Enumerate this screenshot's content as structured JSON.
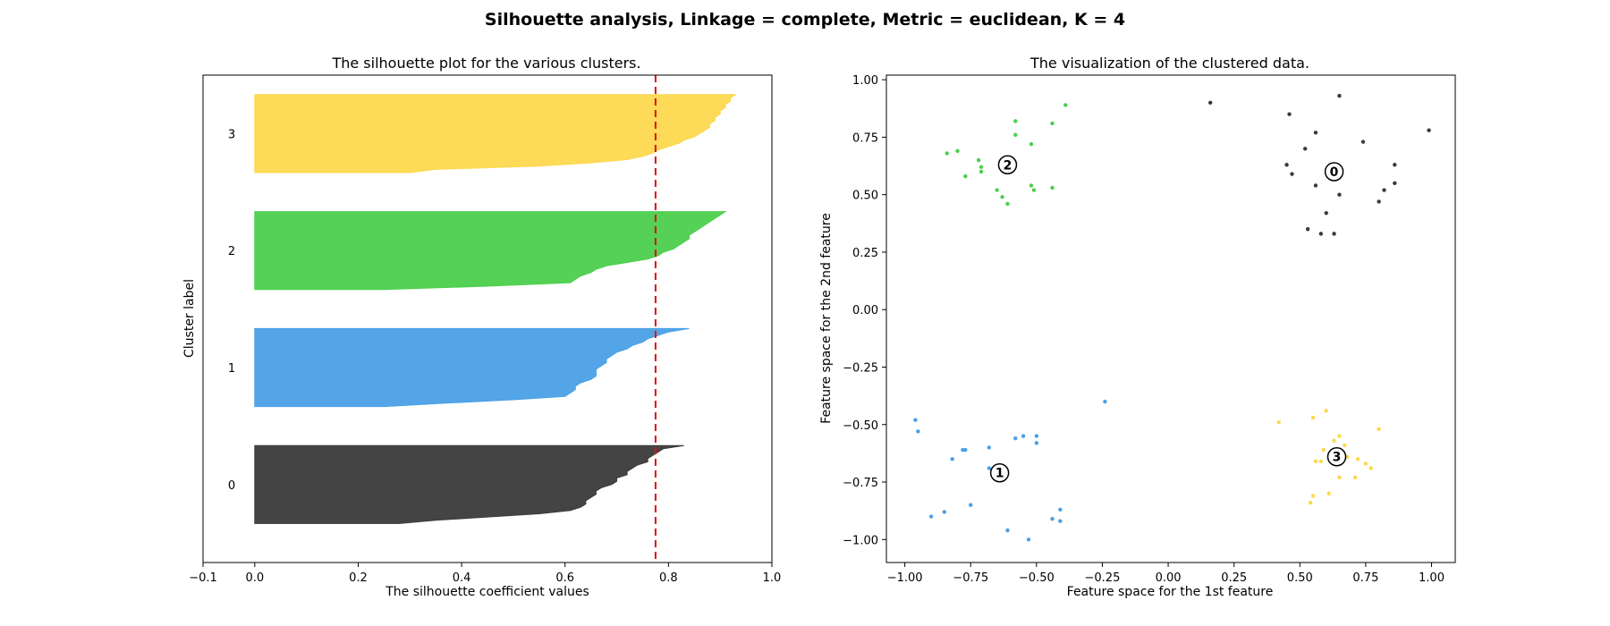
{
  "suptitle": "Silhouette analysis, Linkage = complete, Metric = euclidean, K = 4",
  "colors": {
    "cluster_0": "#3a3a3a",
    "cluster_1": "#4aa0e6",
    "cluster_2": "#4ccf4c",
    "cluster_3": "#fdd84e",
    "threshold_line": "#e01010"
  },
  "chart_data": [
    {
      "type": "area",
      "title": "The silhouette plot for the various clusters.",
      "xlabel": "The silhouette coefficient values",
      "ylabel": "Cluster label",
      "xlim": [
        -0.1,
        1.0
      ],
      "ylim": [
        0,
        5.0
      ],
      "xticks": [
        -0.1,
        0.0,
        0.2,
        0.4,
        0.6,
        0.8,
        1.0
      ],
      "xtick_labels": [
        "−0.1",
        "0.0",
        "0.2",
        "0.4",
        "0.6",
        "0.8",
        "1.0"
      ],
      "average_silhouette": 0.775,
      "clusters": [
        {
          "label": "0",
          "ybase": 0.4,
          "color": "#3a3a3a",
          "values": [
            0.83,
            0.79,
            0.78,
            0.77,
            0.76,
            0.76,
            0.74,
            0.73,
            0.72,
            0.72,
            0.7,
            0.7,
            0.69,
            0.67,
            0.66,
            0.66,
            0.65,
            0.64,
            0.64,
            0.63,
            0.61,
            0.55,
            0.45,
            0.35,
            0.28
          ]
        },
        {
          "label": "1",
          "ybase": 1.6,
          "color": "#4aa0e6",
          "values": [
            0.84,
            0.8,
            0.78,
            0.76,
            0.75,
            0.73,
            0.72,
            0.7,
            0.69,
            0.68,
            0.68,
            0.67,
            0.66,
            0.66,
            0.66,
            0.65,
            0.63,
            0.62,
            0.62,
            0.61,
            0.6,
            0.5,
            0.37,
            0.25
          ]
        },
        {
          "label": "2",
          "ybase": 2.8,
          "color": "#4ccf4c",
          "values": [
            0.91,
            0.9,
            0.89,
            0.88,
            0.87,
            0.86,
            0.85,
            0.84,
            0.84,
            0.83,
            0.82,
            0.81,
            0.79,
            0.78,
            0.76,
            0.72,
            0.68,
            0.66,
            0.65,
            0.63,
            0.62,
            0.61,
            0.45,
            0.25
          ]
        },
        {
          "label": "3",
          "ybase": 4.0,
          "color": "#fdd84e",
          "values": [
            0.93,
            0.92,
            0.92,
            0.91,
            0.91,
            0.9,
            0.9,
            0.89,
            0.89,
            0.88,
            0.88,
            0.87,
            0.86,
            0.85,
            0.83,
            0.82,
            0.8,
            0.78,
            0.77,
            0.75,
            0.72,
            0.65,
            0.55,
            0.35,
            0.3
          ]
        }
      ]
    },
    {
      "type": "scatter",
      "title": "The visualization of the clustered data.",
      "xlabel": "Feature space for the 1st feature",
      "ylabel": "Feature space for the 2nd feature",
      "xlim": [
        -1.07,
        1.09
      ],
      "ylim": [
        -1.1,
        1.02
      ],
      "xticks": [
        -1.0,
        -0.75,
        -0.5,
        -0.25,
        0.0,
        0.25,
        0.5,
        0.75,
        1.0
      ],
      "xtick_labels": [
        "−1.00",
        "−0.75",
        "−0.50",
        "−0.25",
        "0.00",
        "0.25",
        "0.50",
        "0.75",
        "1.00"
      ],
      "yticks": [
        -1.0,
        -0.75,
        -0.5,
        -0.25,
        0.0,
        0.25,
        0.5,
        0.75,
        1.0
      ],
      "ytick_labels": [
        "−1.00",
        "−0.75",
        "−0.50",
        "−0.25",
        "0.00",
        "0.25",
        "0.50",
        "0.75",
        "1.00"
      ],
      "series": [
        {
          "cluster": "0",
          "color": "#3a3a3a",
          "points": [
            [
              0.16,
              0.9
            ],
            [
              0.46,
              0.85
            ],
            [
              0.65,
              0.93
            ],
            [
              0.99,
              0.78
            ],
            [
              0.56,
              0.77
            ],
            [
              0.74,
              0.73
            ],
            [
              0.52,
              0.7
            ],
            [
              0.45,
              0.63
            ],
            [
              0.86,
              0.63
            ],
            [
              0.47,
              0.59
            ],
            [
              0.56,
              0.54
            ],
            [
              0.82,
              0.52
            ],
            [
              0.86,
              0.55
            ],
            [
              0.65,
              0.5
            ],
            [
              0.8,
              0.47
            ],
            [
              0.6,
              0.42
            ],
            [
              0.53,
              0.35
            ],
            [
              0.58,
              0.33
            ],
            [
              0.63,
              0.33
            ]
          ],
          "center": [
            0.63,
            0.6
          ]
        },
        {
          "cluster": "1",
          "color": "#4aa0e6",
          "points": [
            [
              -0.24,
              -0.4
            ],
            [
              -0.96,
              -0.48
            ],
            [
              -0.95,
              -0.53
            ],
            [
              -0.58,
              -0.56
            ],
            [
              -0.55,
              -0.55
            ],
            [
              -0.5,
              -0.55
            ],
            [
              -0.5,
              -0.58
            ],
            [
              -0.68,
              -0.6
            ],
            [
              -0.78,
              -0.61
            ],
            [
              -0.77,
              -0.61
            ],
            [
              -0.82,
              -0.65
            ],
            [
              -0.68,
              -0.69
            ],
            [
              -0.75,
              -0.85
            ],
            [
              -0.85,
              -0.88
            ],
            [
              -0.9,
              -0.9
            ],
            [
              -0.41,
              -0.87
            ],
            [
              -0.44,
              -0.91
            ],
            [
              -0.41,
              -0.92
            ],
            [
              -0.61,
              -0.96
            ],
            [
              -0.53,
              -1.0
            ]
          ],
          "center": [
            -0.64,
            -0.71
          ]
        },
        {
          "cluster": "2",
          "color": "#4ccf4c",
          "points": [
            [
              -0.39,
              0.89
            ],
            [
              -0.58,
              0.82
            ],
            [
              -0.44,
              0.81
            ],
            [
              -0.58,
              0.76
            ],
            [
              -0.52,
              0.72
            ],
            [
              -0.84,
              0.68
            ],
            [
              -0.8,
              0.69
            ],
            [
              -0.72,
              0.65
            ],
            [
              -0.71,
              0.62
            ],
            [
              -0.71,
              0.6
            ],
            [
              -0.77,
              0.58
            ],
            [
              -0.65,
              0.52
            ],
            [
              -0.63,
              0.49
            ],
            [
              -0.52,
              0.54
            ],
            [
              -0.51,
              0.52
            ],
            [
              -0.44,
              0.53
            ],
            [
              -0.61,
              0.46
            ]
          ],
          "center": [
            -0.61,
            0.63
          ]
        },
        {
          "cluster": "3",
          "color": "#fdd84e",
          "points": [
            [
              0.6,
              -0.44
            ],
            [
              0.42,
              -0.49
            ],
            [
              0.55,
              -0.47
            ],
            [
              0.8,
              -0.52
            ],
            [
              0.65,
              -0.55
            ],
            [
              0.63,
              -0.57
            ],
            [
              0.67,
              -0.59
            ],
            [
              0.59,
              -0.61
            ],
            [
              0.68,
              -0.64
            ],
            [
              0.72,
              -0.65
            ],
            [
              0.56,
              -0.66
            ],
            [
              0.58,
              -0.66
            ],
            [
              0.75,
              -0.67
            ],
            [
              0.77,
              -0.69
            ],
            [
              0.65,
              -0.73
            ],
            [
              0.71,
              -0.73
            ],
            [
              0.61,
              -0.8
            ],
            [
              0.55,
              -0.81
            ],
            [
              0.54,
              -0.84
            ]
          ],
          "center": [
            0.64,
            -0.64
          ]
        }
      ]
    }
  ]
}
